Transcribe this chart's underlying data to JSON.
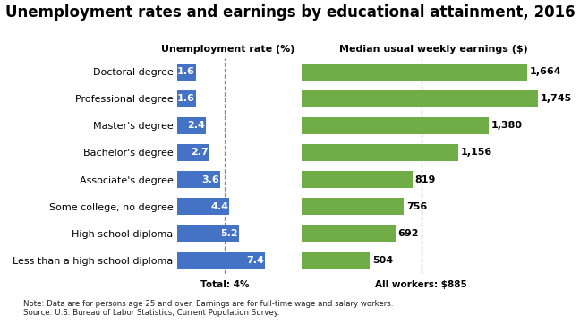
{
  "title": "Unemployment rates and earnings by educational attainment, 2016",
  "categories": [
    "Doctoral degree",
    "Professional degree",
    "Master's degree",
    "Bachelor's degree",
    "Associate's degree",
    "Some college, no degree",
    "High school diploma",
    "Less than a high school diploma"
  ],
  "unemployment": [
    1.6,
    1.6,
    2.4,
    2.7,
    3.6,
    4.4,
    5.2,
    7.4
  ],
  "earnings": [
    1664,
    1745,
    1380,
    1156,
    819,
    756,
    692,
    504
  ],
  "unemployment_color": "#4472C4",
  "earnings_color": "#70AD47",
  "unemp_header": "Unemployment rate (%)",
  "earn_header": "Median usual weekly earnings ($)",
  "total_label": "Total: 4%",
  "all_workers_label": "All workers: $885",
  "note_line1": "Note: Data are for persons age 25 and over. Earnings are for full-time wage and salary workers.",
  "note_line2": "Source: U.S. Bureau of Labor Statistics, Current Population Survey.",
  "unemp_max": 8.5,
  "earn_max": 1950,
  "background_color": "#FFFFFF",
  "title_fontsize": 12,
  "label_fontsize": 8,
  "bar_height": 0.62
}
